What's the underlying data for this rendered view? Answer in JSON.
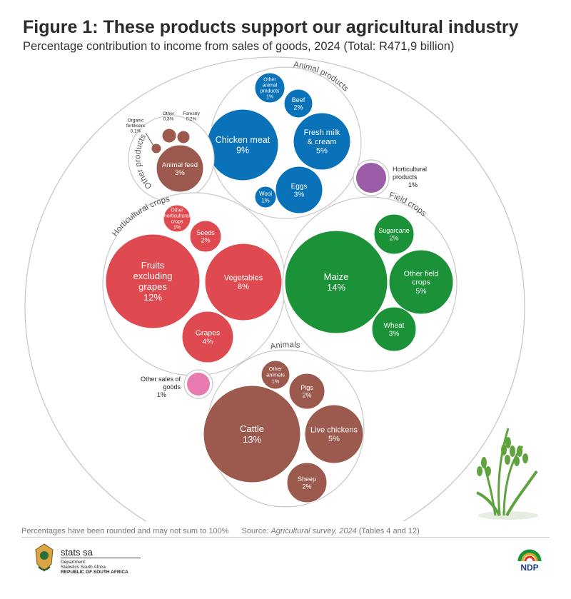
{
  "header": {
    "title": "Figure 1: These products support our agricultural industry",
    "subtitle": "Percentage contribution to income from sales of goods, 2024 (Total: R471,9 billion)"
  },
  "footer": {
    "note": "Percentages have been rounded and may not sum to 100%",
    "source_prefix": "Source: ",
    "source_title": "Agricultural survey, 2024",
    "source_suffix": " (Tables 4 and 12)"
  },
  "logos": {
    "org_name": "stats sa",
    "org_department": "Department:",
    "org_dept_name": "Statistics South Africa",
    "org_country": "REPUBLIC OF SOUTH AFRICA",
    "ndp_text": "NDP"
  },
  "colors": {
    "animal_products": "#0a72b9",
    "other_products": "#9b5a4d",
    "horticultural_crops": "#de4a4f",
    "field_crops": "#1b9238",
    "animals": "#9b5a4d",
    "horticultural_products": "#9b5da8",
    "other_sales": "#e77aae",
    "outline": "#c8c8c8"
  },
  "chart_data": {
    "type": "packed-bubble",
    "unit": "%",
    "groups": [
      {
        "key": "animal_products",
        "name": "Animal products",
        "items": [
          {
            "name": "Chicken meat",
            "value": 9
          },
          {
            "name": "Fresh milk & cream",
            "value": 5
          },
          {
            "name": "Eggs",
            "value": 3
          },
          {
            "name": "Beef",
            "value": 2
          },
          {
            "name": "Other animal products",
            "value": 1
          },
          {
            "name": "Wool",
            "value": 1
          }
        ]
      },
      {
        "key": "other_products",
        "name": "Other products",
        "items": [
          {
            "name": "Animal feed",
            "value": 3
          },
          {
            "name": "Other",
            "value": 0.3
          },
          {
            "name": "Forestry",
            "value": 0.2
          },
          {
            "name": "Organic fertilisers",
            "value": 0.1
          }
        ]
      },
      {
        "key": "horticultural_crops",
        "name": "Horticultural crops",
        "items": [
          {
            "name": "Fruits excluding grapes",
            "value": 12
          },
          {
            "name": "Vegetables",
            "value": 8
          },
          {
            "name": "Grapes",
            "value": 4
          },
          {
            "name": "Seeds",
            "value": 2
          },
          {
            "name": "Other horticultural crops",
            "value": 1
          }
        ]
      },
      {
        "key": "field_crops",
        "name": "Field crops",
        "items": [
          {
            "name": "Maize",
            "value": 14
          },
          {
            "name": "Other field crops",
            "value": 5
          },
          {
            "name": "Wheat",
            "value": 3
          },
          {
            "name": "Sugarcane",
            "value": 2
          }
        ]
      },
      {
        "key": "animals",
        "name": "Animals",
        "items": [
          {
            "name": "Cattle",
            "value": 13
          },
          {
            "name": "Live chickens",
            "value": 5
          },
          {
            "name": "Pigs",
            "value": 2
          },
          {
            "name": "Sheep",
            "value": 2
          },
          {
            "name": "Other animals",
            "value": 1
          }
        ]
      }
    ],
    "standalone": [
      {
        "key": "horticultural_products",
        "name": "Horticultural products",
        "value": 1
      },
      {
        "key": "other_sales",
        "name": "Other sales of goods",
        "value": 1
      }
    ]
  }
}
